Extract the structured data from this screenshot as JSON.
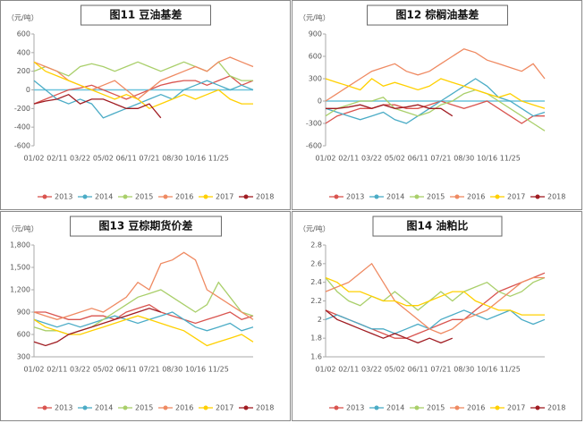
{
  "chart_data": [
    {
      "type": "line",
      "title": "图11 豆油基差",
      "y_label": "（元/吨）",
      "categories": [
        "01/02",
        null,
        "02/11",
        null,
        "03/22",
        null,
        "05/02",
        null,
        "06/11",
        null,
        "07/21",
        null,
        "08/30",
        null,
        "10/16",
        null,
        "11/25",
        null,
        null,
        null
      ],
      "ylim": [
        -600,
        600
      ],
      "yticks": [
        -600,
        -400,
        -200,
        0,
        200,
        400,
        600
      ],
      "series": [
        {
          "name": "2013",
          "color": "#d9544f",
          "values": [
            -150,
            -100,
            -50,
            0,
            20,
            50,
            0,
            -50,
            -100,
            -50,
            0,
            50,
            80,
            100,
            100,
            50,
            100,
            150,
            50,
            100
          ]
        },
        {
          "name": "2014",
          "color": "#4bacc6",
          "values": [
            100,
            0,
            -100,
            -150,
            -100,
            -150,
            -300,
            -250,
            -200,
            -150,
            -100,
            -50,
            -100,
            0,
            50,
            100,
            50,
            0,
            50,
            0
          ]
        },
        {
          "name": "2015",
          "color": "#a9cf6a",
          "values": [
            200,
            250,
            200,
            150,
            250,
            280,
            250,
            200,
            250,
            300,
            250,
            200,
            250,
            300,
            250,
            200,
            300,
            150,
            100,
            100
          ]
        },
        {
          "name": "2016",
          "color": "#ef8a62",
          "values": [
            300,
            250,
            200,
            100,
            50,
            0,
            50,
            100,
            0,
            -100,
            0,
            100,
            150,
            200,
            250,
            200,
            300,
            350,
            300,
            250
          ]
        },
        {
          "name": "2017",
          "color": "#ffd000",
          "values": [
            300,
            200,
            150,
            100,
            50,
            0,
            -50,
            -100,
            -50,
            -100,
            -200,
            -150,
            -100,
            -50,
            -100,
            -50,
            0,
            -100,
            -150,
            -150
          ]
        },
        {
          "name": "2018",
          "color": "#a01c22",
          "values": [
            -150,
            -120,
            -100,
            -50,
            -150,
            -100,
            -100,
            -150,
            -200,
            -200,
            -150,
            -300,
            null,
            null,
            null,
            null,
            null,
            null,
            null,
            null
          ]
        }
      ]
    },
    {
      "type": "line",
      "title": "图12 棕榈油基差",
      "y_label": "（元/吨）",
      "categories": [
        "01/02",
        null,
        "02/11",
        null,
        "03/22",
        null,
        "05/02",
        null,
        "06/11",
        null,
        "07/21",
        null,
        "08/30",
        null,
        "10/16",
        null,
        "11/25",
        null,
        null,
        null
      ],
      "ylim": [
        -600,
        900
      ],
      "yticks": [
        -600,
        -300,
        0,
        300,
        600,
        900
      ],
      "series": [
        {
          "name": "2013",
          "color": "#d9544f",
          "values": [
            -300,
            -200,
            -150,
            -100,
            -100,
            -50,
            -50,
            -100,
            -100,
            -50,
            0,
            -50,
            -100,
            -50,
            0,
            -100,
            -200,
            -300,
            -200,
            -200
          ]
        },
        {
          "name": "2014",
          "color": "#4bacc6",
          "values": [
            -100,
            -150,
            -200,
            -250,
            -200,
            -150,
            -250,
            -300,
            -200,
            -100,
            0,
            100,
            200,
            300,
            200,
            50,
            0,
            -100,
            -200,
            -150
          ]
        },
        {
          "name": "2015",
          "color": "#a9cf6a",
          "values": [
            -200,
            -100,
            -50,
            0,
            0,
            50,
            -100,
            -150,
            -200,
            -150,
            -50,
            0,
            100,
            150,
            100,
            0,
            -100,
            -200,
            -300,
            -400
          ]
        },
        {
          "name": "2016",
          "color": "#ef8a62",
          "values": [
            0,
            100,
            200,
            300,
            400,
            450,
            500,
            400,
            350,
            400,
            500,
            600,
            700,
            650,
            550,
            500,
            450,
            400,
            500,
            300
          ]
        },
        {
          "name": "2017",
          "color": "#ffd000",
          "values": [
            300,
            250,
            200,
            150,
            300,
            200,
            250,
            200,
            150,
            200,
            300,
            250,
            200,
            150,
            100,
            50,
            100,
            0,
            -50,
            -100
          ]
        },
        {
          "name": "2018",
          "color": "#a01c22",
          "values": [
            -100,
            -100,
            -80,
            -50,
            -100,
            -50,
            -100,
            -80,
            -50,
            -100,
            -100,
            -200,
            null,
            null,
            null,
            null,
            null,
            null,
            null,
            null
          ]
        }
      ]
    },
    {
      "type": "line",
      "title": "图13 豆棕期货价差",
      "y_label": "（元/吨）",
      "categories": [
        "01/02",
        null,
        "02/11",
        null,
        "03/22",
        null,
        "05/02",
        null,
        "06/11",
        null,
        "07/21",
        null,
        "08/30",
        null,
        "10/16",
        null,
        "11/25",
        null,
        null,
        null
      ],
      "ylim": [
        300,
        1800
      ],
      "yticks": [
        300,
        600,
        900,
        {
          "value": 1200,
          "label": "1,200"
        },
        {
          "value": 1500,
          "label": "1,500"
        },
        {
          "value": 1800,
          "label": "1,800"
        }
      ],
      "series": [
        {
          "name": "2013",
          "color": "#d9544f",
          "values": [
            900,
            900,
            850,
            800,
            800,
            850,
            850,
            800,
            900,
            950,
            1000,
            900,
            850,
            800,
            750,
            800,
            850,
            900,
            800,
            850
          ]
        },
        {
          "name": "2014",
          "color": "#4bacc6",
          "values": [
            800,
            750,
            700,
            750,
            700,
            750,
            800,
            850,
            800,
            750,
            800,
            850,
            900,
            800,
            700,
            650,
            700,
            750,
            650,
            700
          ]
        },
        {
          "name": "2015",
          "color": "#a9cf6a",
          "values": [
            700,
            650,
            650,
            600,
            650,
            700,
            800,
            900,
            1000,
            1100,
            1150,
            1200,
            1100,
            1000,
            900,
            1000,
            1300,
            1100,
            900,
            850
          ]
        },
        {
          "name": "2016",
          "color": "#ef8a62",
          "values": [
            900,
            850,
            800,
            850,
            900,
            950,
            900,
            1000,
            1100,
            1300,
            1200,
            1550,
            1600,
            1700,
            1600,
            1200,
            1100,
            1000,
            900,
            800
          ]
        },
        {
          "name": "2017",
          "color": "#ffd000",
          "values": [
            800,
            700,
            650,
            600,
            600,
            650,
            700,
            750,
            800,
            850,
            800,
            750,
            700,
            650,
            550,
            450,
            500,
            550,
            600,
            500
          ]
        },
        {
          "name": "2018",
          "color": "#a01c22",
          "values": [
            500,
            450,
            500,
            600,
            650,
            700,
            750,
            800,
            850,
            900,
            950,
            900,
            null,
            null,
            null,
            null,
            null,
            null,
            null,
            null
          ]
        }
      ]
    },
    {
      "type": "line",
      "title": "图14 油粕比",
      "y_label": "（元/吨）",
      "categories": [
        "01/02",
        null,
        "02/11",
        null,
        "03/22",
        null,
        "05/02",
        null,
        "06/11",
        null,
        "07/21",
        null,
        "08/30",
        null,
        "10/16",
        null,
        "11/25",
        null,
        null,
        null
      ],
      "ylim": [
        1.6,
        2.8
      ],
      "yticks": [
        1.6,
        1.8,
        2,
        2.2,
        2.4,
        2.6,
        2.8
      ],
      "series": [
        {
          "name": "2013",
          "color": "#d9544f",
          "values": [
            2.1,
            2.05,
            2.0,
            1.95,
            1.9,
            1.85,
            1.8,
            1.8,
            1.85,
            1.9,
            1.95,
            2.0,
            2.0,
            2.1,
            2.2,
            2.3,
            2.35,
            2.4,
            2.45,
            2.5
          ]
        },
        {
          "name": "2014",
          "color": "#4bacc6",
          "values": [
            2.0,
            2.05,
            2.0,
            1.95,
            1.9,
            1.9,
            1.85,
            1.9,
            1.95,
            1.9,
            2.0,
            2.05,
            2.1,
            2.05,
            2.0,
            2.05,
            2.1,
            2.0,
            1.95,
            2.0
          ]
        },
        {
          "name": "2015",
          "color": "#a9cf6a",
          "values": [
            2.45,
            2.3,
            2.2,
            2.15,
            2.25,
            2.2,
            2.3,
            2.2,
            2.1,
            2.2,
            2.3,
            2.2,
            2.3,
            2.35,
            2.4,
            2.3,
            2.25,
            2.3,
            2.4,
            2.45
          ]
        },
        {
          "name": "2016",
          "color": "#ef8a62",
          "values": [
            2.3,
            2.35,
            2.4,
            2.5,
            2.6,
            2.4,
            2.2,
            2.1,
            2.0,
            1.9,
            1.85,
            1.9,
            2.0,
            2.05,
            2.1,
            2.2,
            2.3,
            2.4,
            2.45,
            2.45
          ]
        },
        {
          "name": "2017",
          "color": "#ffd000",
          "values": [
            2.45,
            2.4,
            2.3,
            2.3,
            2.25,
            2.2,
            2.2,
            2.15,
            2.15,
            2.2,
            2.25,
            2.3,
            2.3,
            2.2,
            2.15,
            2.1,
            2.1,
            2.05,
            2.05,
            2.05
          ]
        },
        {
          "name": "2018",
          "color": "#a01c22",
          "values": [
            2.1,
            2.0,
            1.95,
            1.9,
            1.85,
            1.8,
            1.85,
            1.8,
            1.75,
            1.8,
            1.75,
            1.8,
            null,
            null,
            null,
            null,
            null,
            null,
            null,
            null
          ]
        }
      ]
    }
  ]
}
